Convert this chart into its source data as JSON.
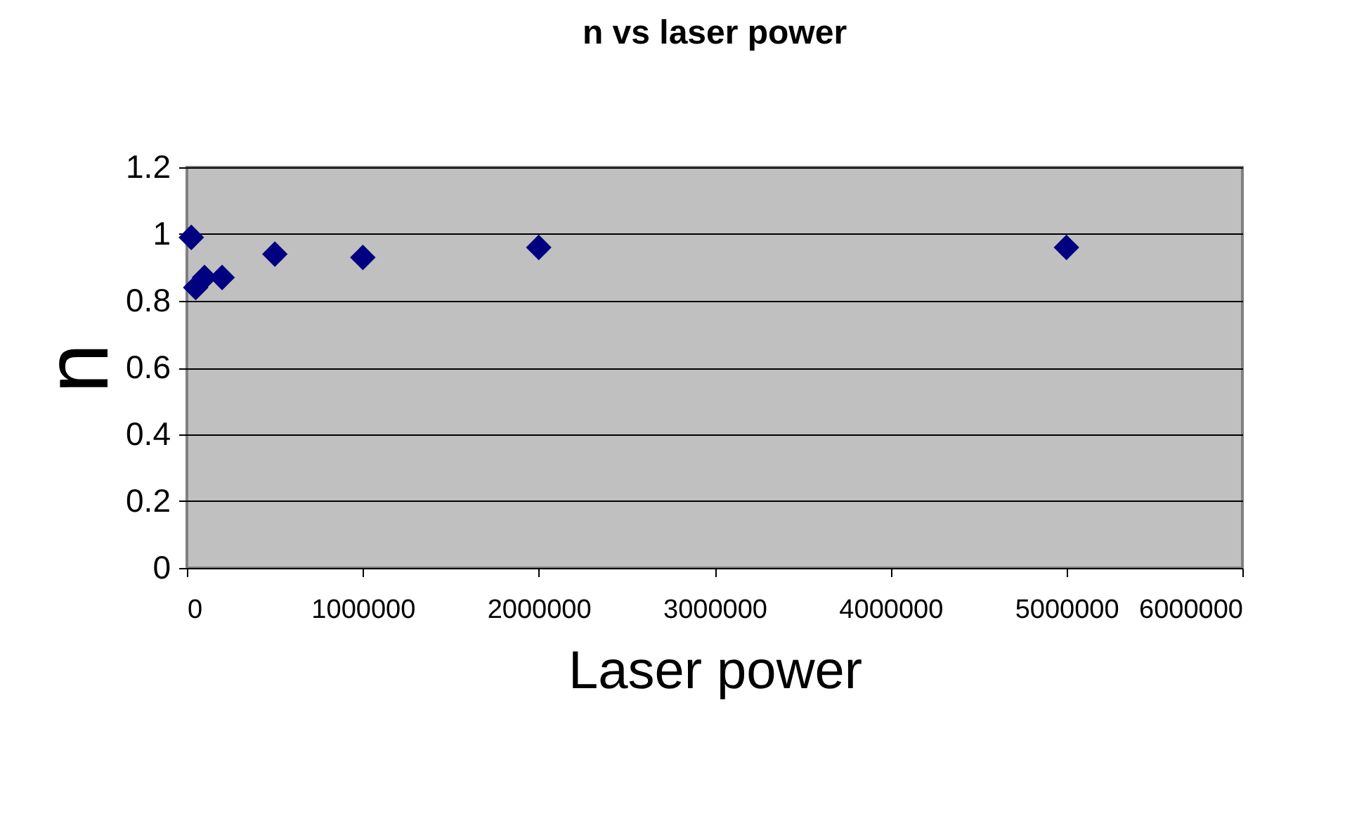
{
  "chart_data": {
    "type": "scatter",
    "title": "n vs laser power",
    "xlabel": "Laser power",
    "ylabel": "n",
    "x": [
      25000,
      50000,
      100000,
      200000,
      500000,
      1000000,
      2000000,
      5000000
    ],
    "series": [
      {
        "color": "#000080",
        "values": [
          0.99,
          0.84,
          0.87,
          0.87,
          0.94,
          0.93,
          0.96,
          0.96
        ]
      }
    ],
    "xlim": [
      0,
      6000000
    ],
    "xticks": [
      0,
      1000000,
      2000000,
      3000000,
      4000000,
      5000000,
      6000000
    ],
    "ylim": [
      0,
      1.2
    ],
    "yticks": [
      0,
      0.2,
      0.4,
      0.6,
      0.8,
      1,
      1.2
    ],
    "grid": "y",
    "marker": "diamond",
    "legend": false
  }
}
